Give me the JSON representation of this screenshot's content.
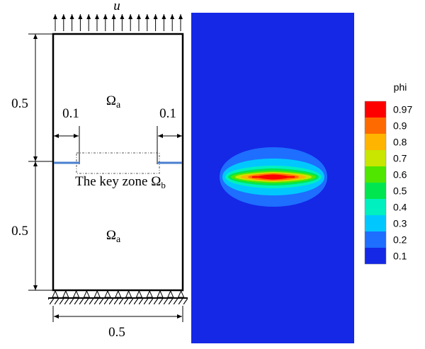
{
  "load_label": "u",
  "dimensions": {
    "left_top": "0.5",
    "left_bottom": "0.5",
    "crack_left": "0.1",
    "crack_right": "0.1",
    "bottom": "0.5"
  },
  "regions": [
    {
      "symbol": "Ω",
      "sub": "a"
    },
    {
      "symbol": "Ω",
      "sub": "a"
    }
  ],
  "key_zone": {
    "text": "The key zone Ω",
    "sub": "b"
  },
  "colorbar": {
    "title": "phi",
    "levels": [
      {
        "label": "0.97",
        "color": "#ff0000"
      },
      {
        "label": "0.9",
        "color": "#ff6a00"
      },
      {
        "label": "0.8",
        "color": "#ffb400"
      },
      {
        "label": "0.7",
        "color": "#c8e600"
      },
      {
        "label": "0.6",
        "color": "#50e600"
      },
      {
        "label": "0.5",
        "color": "#00e650"
      },
      {
        "label": "0.4",
        "color": "#00f0c0"
      },
      {
        "label": "0.3",
        "color": "#00c8ff"
      },
      {
        "label": "0.2",
        "color": "#1e6eff"
      },
      {
        "label": "0.1",
        "color": "#1428e6"
      }
    ]
  }
}
